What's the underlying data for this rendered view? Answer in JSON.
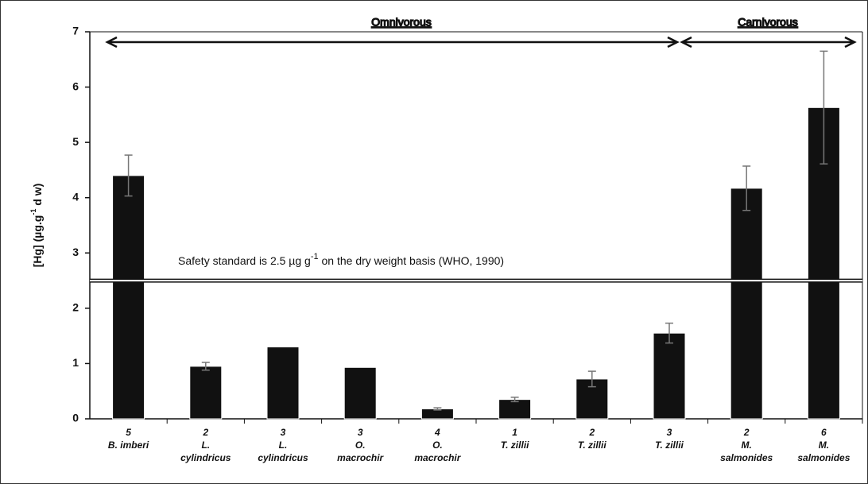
{
  "chart_data": {
    "type": "bar",
    "y_label": [
      "[Hg] (µg.g",
      "-1",
      " d w)"
    ],
    "categories": [
      [
        "5",
        "B. imberi"
      ],
      [
        "2",
        "L.",
        "cylindricus"
      ],
      [
        "3",
        "L.",
        "cylindricus"
      ],
      [
        "3",
        "O.",
        "macrochir"
      ],
      [
        "4",
        "O.",
        "macrochir"
      ],
      [
        "1",
        "T. zillii"
      ],
      [
        "2",
        "T. zillii"
      ],
      [
        "3",
        "T. zillii"
      ],
      [
        "2",
        "M.",
        "salmonides"
      ],
      [
        "6",
        "M.",
        "salmonides"
      ]
    ],
    "values": [
      4.4,
      0.95,
      1.3,
      0.93,
      0.18,
      0.35,
      0.72,
      1.55,
      4.17,
      5.63
    ],
    "errors": [
      0.37,
      0.07,
      null,
      null,
      0.02,
      0.04,
      0.14,
      0.18,
      0.4,
      1.02
    ],
    "color": "#111111",
    "ylim": [
      0,
      7
    ],
    "yticks": [
      0,
      1,
      2,
      3,
      4,
      5,
      6,
      7
    ],
    "reference_line": {
      "value": 2.5,
      "label": [
        "Safety standard is 2.5 µg g",
        "-1",
        " on the dry weight basis (WHO, 1990)"
      ]
    },
    "groups": [
      {
        "label": "Omnivorous"
      },
      {
        "label": "Carnivorous"
      }
    ]
  }
}
